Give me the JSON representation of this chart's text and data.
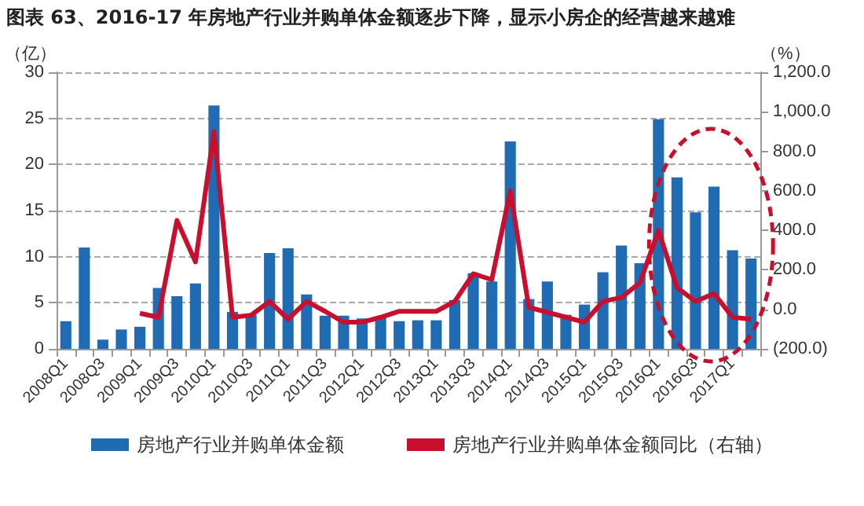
{
  "chart_data": {
    "type": "bar",
    "title": "图表 63、2016-17 年房地产行业并购单体金额逐步下降，显示小房企的经营越来越难",
    "ylabel": "（亿）",
    "y2label": "（%）",
    "categories": [
      "2008Q1",
      null,
      "2008Q3",
      null,
      "2009Q1",
      null,
      "2009Q3",
      null,
      "2010Q1",
      null,
      "2010Q3",
      null,
      "2011Q1",
      null,
      "2011Q3",
      null,
      "2012Q1",
      null,
      "2012Q3",
      null,
      "2013Q1",
      null,
      "2013Q3",
      null,
      "2014Q1",
      null,
      "2014Q3",
      null,
      "2015Q1",
      null,
      "2015Q3",
      null,
      "2016Q1",
      null,
      "2016Q3",
      null,
      "2017Q1",
      null
    ],
    "series": [
      {
        "name": "房地产行业并购单体金额",
        "color": "#1f6bb4",
        "values": [
          3.0,
          11.0,
          1.0,
          2.1,
          2.4,
          6.6,
          5.7,
          7.1,
          26.4,
          4.0,
          3.7,
          10.4,
          10.9,
          5.9,
          3.6,
          3.6,
          3.3,
          3.4,
          3.0,
          3.1,
          3.1,
          5.3,
          8.2,
          7.3,
          22.5,
          5.4,
          7.3,
          3.7,
          4.8,
          8.3,
          11.2,
          9.3,
          24.9,
          18.6,
          14.8,
          17.6,
          10.7,
          9.8
        ]
      },
      {
        "name": "房地产行业并购单体金额同比（右轴）",
        "type": "line",
        "axis": "y2",
        "color": "#c8102e",
        "values": [
          null,
          null,
          null,
          null,
          -20,
          -40,
          450,
          240,
          900,
          -40,
          -30,
          40,
          -50,
          40,
          -10,
          -65,
          -65,
          -40,
          -10,
          -10,
          -10,
          40,
          180,
          150,
          600,
          10,
          -15,
          -40,
          -65,
          40,
          60,
          135,
          400,
          110,
          40,
          80,
          -40,
          -50
        ]
      }
    ],
    "ylim": [
      0,
      30
    ],
    "yticks": [
      0,
      5,
      10,
      15,
      20,
      25,
      30
    ],
    "y2lim": [
      -200,
      1200
    ],
    "y2ticks": [
      {
        "value": -200,
        "label": "(200.0)"
      },
      {
        "value": 0,
        "label": "0.0"
      },
      {
        "value": 200,
        "label": "200.0"
      },
      {
        "value": 400,
        "label": "400.0"
      },
      {
        "value": 600,
        "label": "600.0"
      },
      {
        "value": 800,
        "label": "800.0"
      },
      {
        "value": 1000,
        "label": "1,000.0"
      },
      {
        "value": 1200,
        "label": "1,200.0"
      }
    ],
    "grid": "y",
    "legend": "bottom",
    "marker": "none",
    "line_style": "solid"
  }
}
